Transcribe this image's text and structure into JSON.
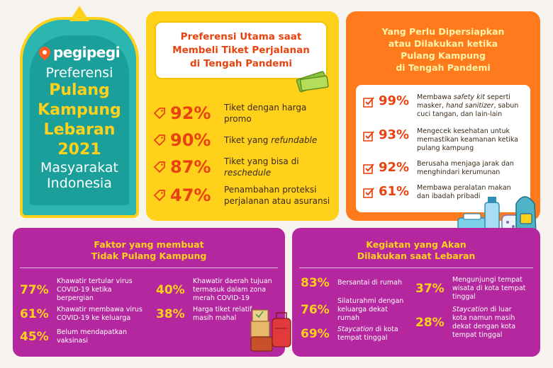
{
  "title_card": {
    "logo": "pegipegi",
    "line1": "Preferensi",
    "line2": "Pulang",
    "line3": "Kampung",
    "line4": "Lebaran",
    "line5": "2021",
    "line6": "Masyarakat",
    "line7": "Indonesia"
  },
  "preferences": {
    "title_l1": "Preferensi Utama saat",
    "title_l2": "Membeli Tiket Perjalanan",
    "title_l3": "di Tengah Pandemi",
    "items": [
      {
        "pct": "92%",
        "label_a": "Tiket dengan harga",
        "label_b": "promo"
      },
      {
        "pct": "90%",
        "label_a": "Tiket yang ",
        "label_b": "refundable"
      },
      {
        "pct": "87%",
        "label_a": "Tiket yang bisa di",
        "label_b": "reschedule"
      },
      {
        "pct": "47%",
        "label_a": "Penambahan proteksi",
        "label_b": "perjalanan atau asuransi"
      }
    ]
  },
  "preparation": {
    "title_l1": "Yang Perlu Dipersiapkan",
    "title_l2": "atau Dilakukan ketika",
    "title_l3": "Pulang Kampung",
    "title_l4": "di Tengah Pandemi",
    "items": [
      {
        "pct": "99%",
        "l1a": "Membawa ",
        "l1b": "safety kit",
        "l1c": " seperti",
        "l2a": "masker, ",
        "l2b": "hand sanitizer",
        "l2c": ", sabun",
        "l3": "cuci tangan, dan lain-lain"
      },
      {
        "pct": "93%",
        "l1": "Mengecek kesehatan untuk",
        "l2": "memastikan keamanan ketika",
        "l3": "pulang kampung"
      },
      {
        "pct": "92%",
        "l1": "Berusaha menjaga jarak dan",
        "l2": "menghindari kerumunan"
      },
      {
        "pct": "61%",
        "l1": "Membawa peralatan makan",
        "l2": "dan ibadah pribadi"
      }
    ]
  },
  "factors": {
    "title_l1": "Faktor yang membuat",
    "title_l2": "Tidak Pulang Kampung",
    "items": [
      {
        "pct": "77%",
        "l1": "Khawatir tertular virus",
        "l2": "COVID-19 ketika",
        "l3": "berpergian"
      },
      {
        "pct": "61%",
        "l1": "Khawatir membawa virus",
        "l2": "COVID-19 ke keluarga"
      },
      {
        "pct": "45%",
        "l1": "Belum mendapatkan",
        "l2": "vaksinasi"
      },
      {
        "pct": "40%",
        "l1": "Khawatir daerah tujuan",
        "l2": "termasuk dalam zona",
        "l3": "merah COVID-19"
      },
      {
        "pct": "38%",
        "l1": "Harga tiket relatif",
        "l2": "masih mahal"
      }
    ]
  },
  "activities": {
    "title_l1": "Kegiatan yang Akan",
    "title_l2": "Dilakukan saat Lebaran",
    "items": [
      {
        "pct": "83%",
        "l1": "Bersantai di rumah"
      },
      {
        "pct": "76%",
        "l1": "Silaturahmi dengan",
        "l2": "keluarga dekat",
        "l3": "rumah"
      },
      {
        "pct": "69%",
        "l1a": "Staycation",
        "l1b": " di kota",
        "l2": "tempat tinggal"
      },
      {
        "pct": "37%",
        "l1": "Mengunjungi tempat",
        "l2": "wisata di kota tempat",
        "l3": "tinggal"
      },
      {
        "pct": "28%",
        "l1a": "Staycation",
        "l1b": " di luar",
        "l2": "kota namun masih",
        "l3": "dekat dengan kota",
        "l4": "tempat tinggal"
      }
    ]
  },
  "colors": {
    "teal": "#2bb6b0",
    "yellow": "#ffd11a",
    "orange": "#ff7a1c",
    "purple": "#b5279f",
    "accent_red": "#e8430e"
  }
}
